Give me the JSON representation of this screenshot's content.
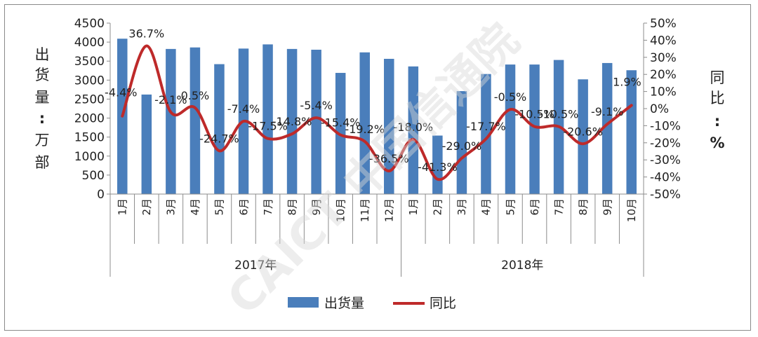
{
  "chart_data": {
    "type": "bar+line",
    "title": "",
    "ylabel_left_chars": [
      "出",
      "货",
      "量",
      ":",
      "万",
      "部"
    ],
    "ylabel_right_chars": [
      "同",
      "比",
      ":",
      "%"
    ],
    "ylim_left": [
      0,
      4500
    ],
    "ylim_right": [
      -50,
      50
    ],
    "left_ticks": [
      "0",
      "500",
      "1000",
      "1500",
      "2000",
      "2500",
      "3000",
      "3500",
      "4000",
      "4500"
    ],
    "right_ticks": [
      "-50%",
      "-40%",
      "-30%",
      "-20%",
      "-10%",
      "0%",
      "10%",
      "20%",
      "30%",
      "40%",
      "50%"
    ],
    "categories": [
      "1月",
      "2月",
      "3月",
      "4月",
      "5月",
      "6月",
      "7月",
      "8月",
      "9月",
      "10月",
      "11月",
      "12月",
      "1月",
      "2月",
      "3月",
      "4月",
      "5月",
      "6月",
      "7月",
      "8月",
      "9月",
      "10月"
    ],
    "groups": [
      {
        "label": "2017年",
        "count": 12
      },
      {
        "label": "2018年",
        "count": 10
      }
    ],
    "series": [
      {
        "name": "出货量",
        "type": "bar",
        "axis": "left",
        "values": [
          4090,
          2620,
          3820,
          3860,
          3420,
          3830,
          3940,
          3820,
          3800,
          3190,
          3730,
          3560,
          3360,
          1540,
          2710,
          3160,
          3410,
          3410,
          3530,
          3020,
          3450,
          3260
        ]
      },
      {
        "name": "同比",
        "type": "line",
        "axis": "right",
        "values": [
          -4.4,
          36.7,
          -2.1,
          0.5,
          -24.7,
          -7.4,
          -17.5,
          -14.8,
          -5.4,
          -15.4,
          -19.2,
          -36.5,
          -18.0,
          -41.3,
          -29.0,
          -17.7,
          -0.5,
          -10.5,
          -10.5,
          -20.6,
          -9.1,
          1.9
        ],
        "labels": [
          "-4.4%",
          "36.7%",
          "-2.1%",
          "0.5%",
          "-24.7%",
          "-7.4%",
          "-17.5%",
          "-14.8%",
          "-5.4%",
          "-15.4%",
          "-19.2%",
          "-36.5%",
          "-18.0%",
          "-41.3%",
          "-29.0%",
          "-17.7%",
          "-0.5%",
          "-10.5%",
          "-10.5%",
          "-20.6%",
          "-9.1%",
          "1.9%"
        ]
      }
    ],
    "legend": [
      {
        "name": "出货量",
        "symbol": "bar"
      },
      {
        "name": "同比",
        "symbol": "line"
      }
    ],
    "legend_position": "bottom",
    "grid": false,
    "colors": {
      "bar": "#4a7ebb",
      "line": "#be2a2a",
      "axis": "#8c8c8c",
      "text": "#222222"
    }
  },
  "watermark": {
    "text": "CAICT 中国信通院"
  }
}
